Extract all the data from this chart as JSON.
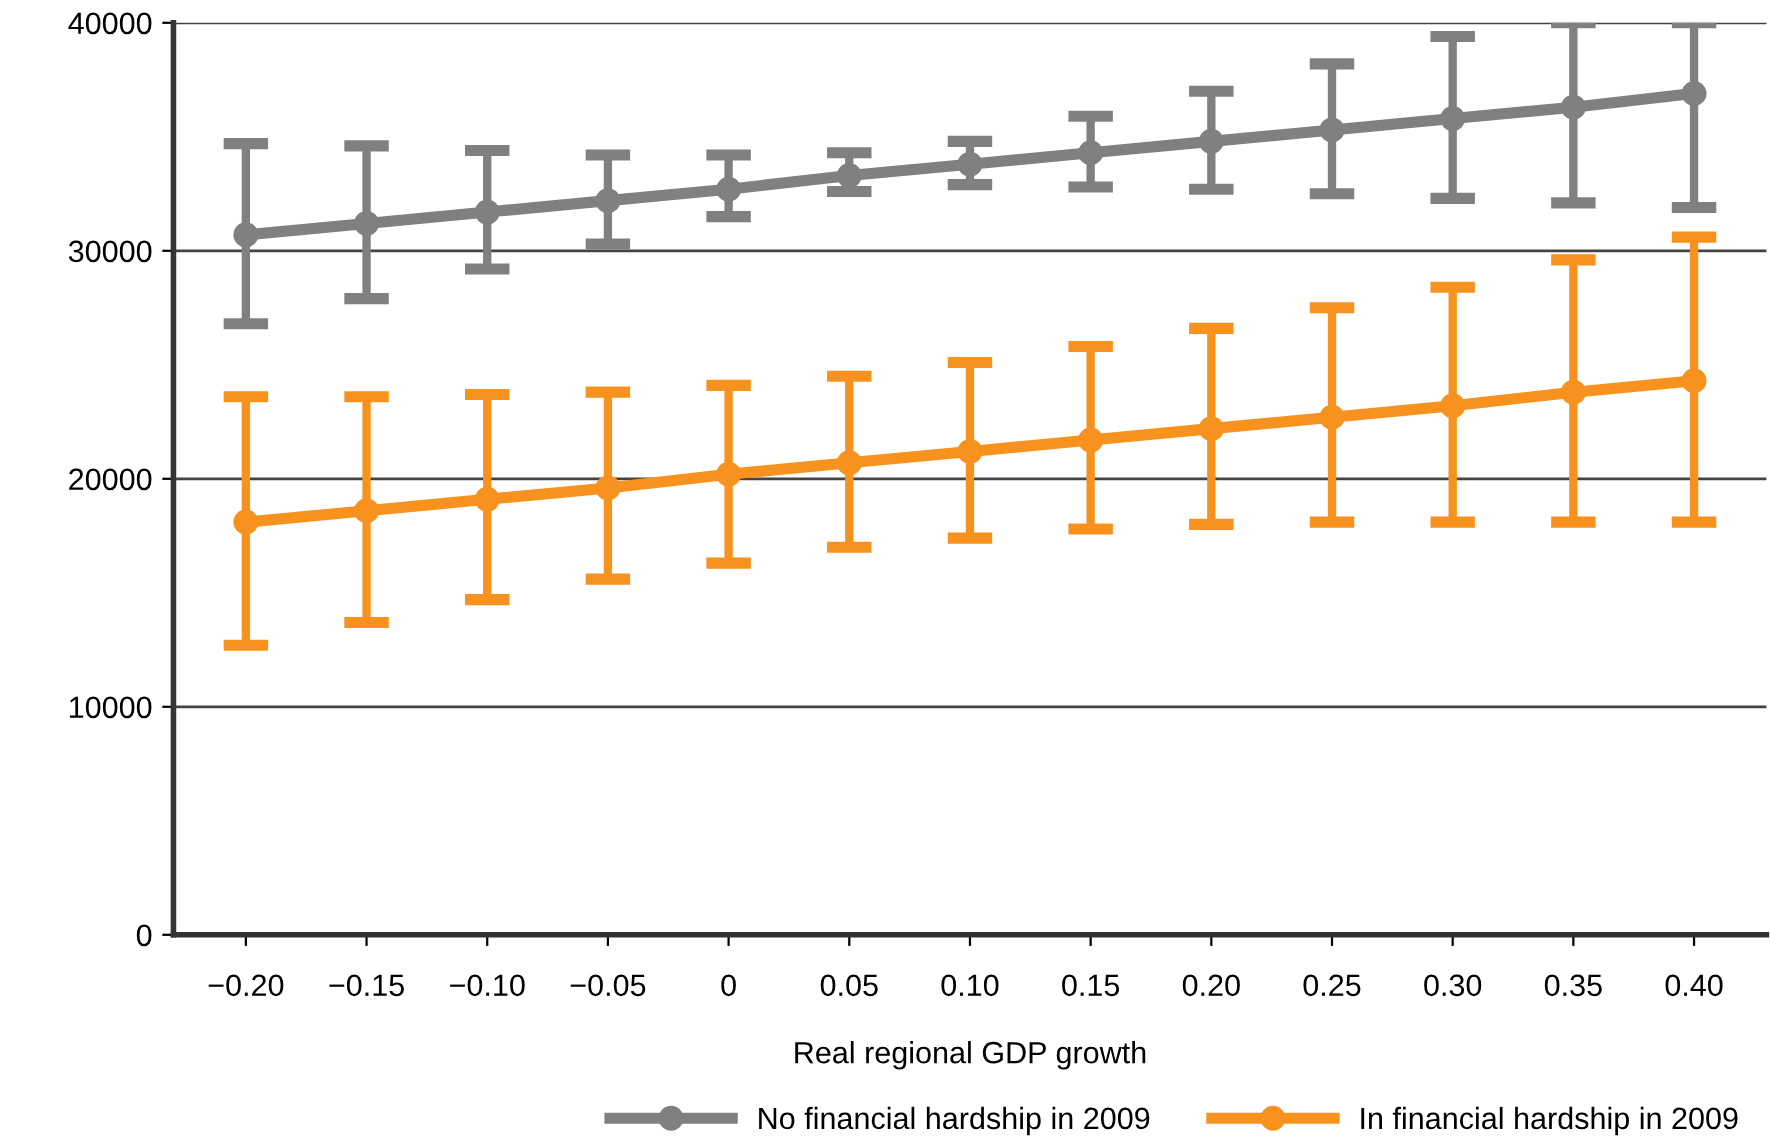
{
  "chart_data": {
    "type": "line",
    "xlabel": "Real regional GDP growth",
    "categories": [
      "−0.20",
      "−0.15",
      "−0.10",
      "−0.05",
      "0",
      "0.05",
      "0.10",
      "0.15",
      "0.20",
      "0.25",
      "0.30",
      "0.35",
      "0.40"
    ],
    "series": [
      {
        "name": "No financial hardship in 2009",
        "color": "#808083",
        "values": [
          30700,
          31200,
          31700,
          32200,
          32700,
          33300,
          33800,
          34300,
          34800,
          35300,
          35800,
          36300,
          36900
        ],
        "errors": [
          [
            26800,
            34700
          ],
          [
            27900,
            34600
          ],
          [
            29200,
            34400
          ],
          [
            30300,
            34200
          ],
          [
            31500,
            34200
          ],
          [
            32600,
            34300
          ],
          [
            32900,
            34800
          ],
          [
            32800,
            35900
          ],
          [
            32700,
            37000
          ],
          [
            32500,
            38200
          ],
          [
            32300,
            39400
          ],
          [
            32100,
            40000
          ],
          [
            31900,
            40000
          ]
        ]
      },
      {
        "name": "In financial hardship in 2009",
        "color": "#f7921e",
        "values": [
          18100,
          18600,
          19100,
          19600,
          20200,
          20700,
          21200,
          21700,
          22200,
          22700,
          23200,
          23800,
          24300
        ],
        "errors": [
          [
            12700,
            23600
          ],
          [
            13700,
            23600
          ],
          [
            14700,
            23700
          ],
          [
            15600,
            23800
          ],
          [
            16300,
            24100
          ],
          [
            17000,
            24500
          ],
          [
            17400,
            25100
          ],
          [
            17800,
            25800
          ],
          [
            18000,
            26600
          ],
          [
            18100,
            27500
          ],
          [
            18100,
            28400
          ],
          [
            18100,
            29600
          ],
          [
            18100,
            30600
          ]
        ]
      }
    ],
    "ylim": [
      0,
      40000
    ],
    "yticks": [
      0,
      10000,
      20000,
      30000,
      40000
    ],
    "grid": "y",
    "legend": "bottom",
    "marker": "circle",
    "line_style": "solid"
  }
}
